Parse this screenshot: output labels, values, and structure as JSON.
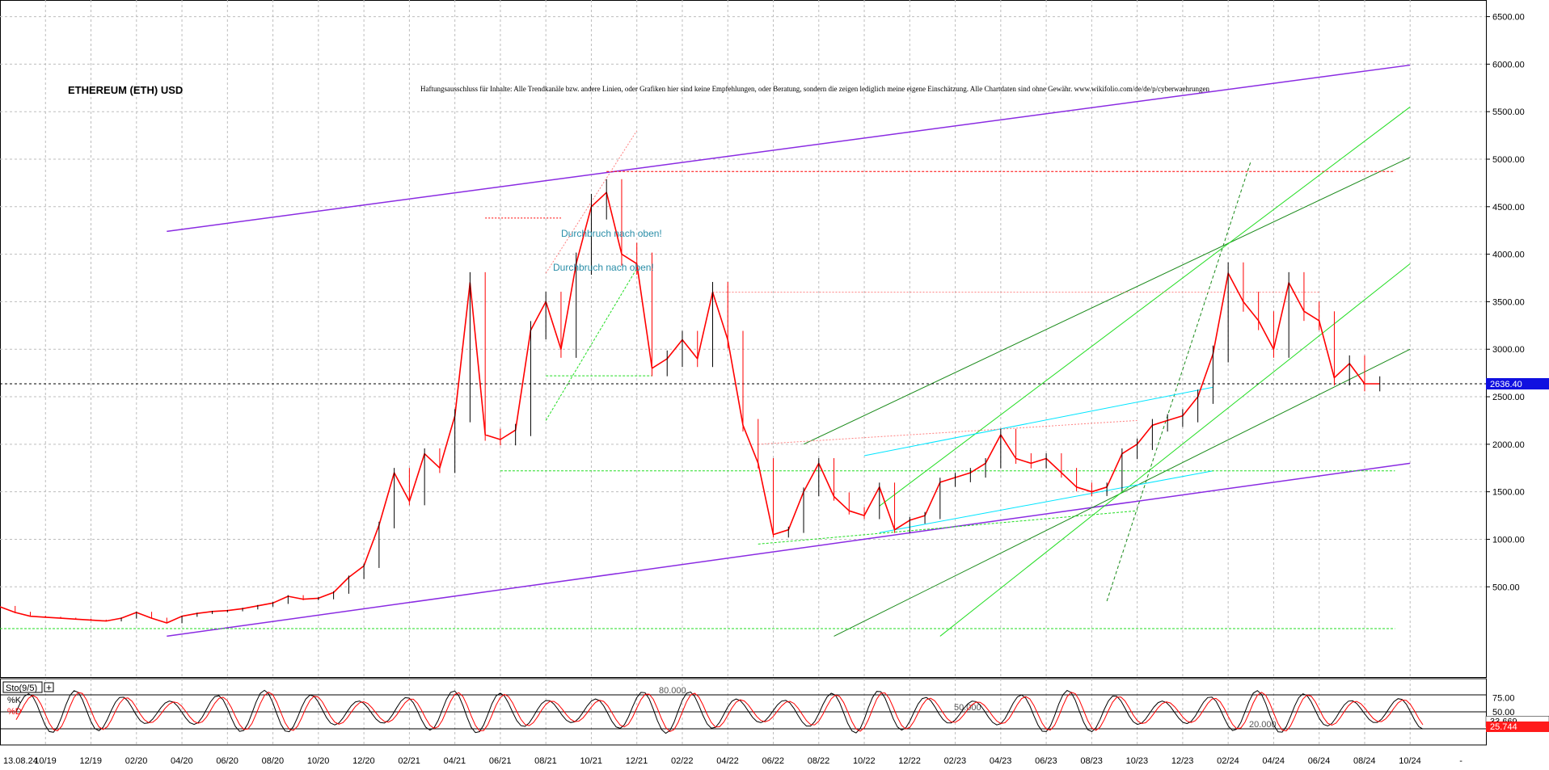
{
  "chart_data": {
    "type": "line",
    "title": "ETHEREUM (ETH) USD",
    "disclaimer": "Haftungsausschluss für Inhalte: Alle Trendkanäle bzw. andere Linien, oder Grafiken hier sind keine Empfehlungen, oder Beratung, sondern die zeigen lediglich meine eigene Einschätzung. Alle Chartdaten sind ohne Gewähr.  www.wikifolio.com/de/de/p/cyberwaehrungen",
    "y_ticks": [
      "6500.00",
      "6000.00",
      "5500.00",
      "5000.00",
      "4500.00",
      "4000.00",
      "3500.00",
      "3000.00",
      "2500.00",
      "2000.00",
      "1500.00",
      "1000.00",
      "500.00"
    ],
    "y_tick_values": [
      6500,
      6000,
      5500,
      5000,
      4500,
      4000,
      3500,
      3000,
      2500,
      2000,
      1500,
      1000,
      500
    ],
    "ylim": [
      -450,
      6675
    ],
    "x_ticks": [
      "13.08.24",
      "10/19",
      "12/19",
      "02/20",
      "04/20",
      "06/20",
      "08/20",
      "10/20",
      "12/20",
      "02/21",
      "04/21",
      "06/21",
      "08/21",
      "10/21",
      "12/21",
      "02/22",
      "04/22",
      "06/22",
      "08/22",
      "10/22",
      "12/22",
      "02/23",
      "04/23",
      "06/23",
      "08/23",
      "10/23",
      "12/23",
      "02/24",
      "04/24",
      "06/24",
      "08/24",
      "10/24",
      "-"
    ],
    "x_tick_index": [
      0,
      3,
      6,
      9,
      12,
      15,
      18,
      21,
      24,
      27,
      30,
      33,
      36,
      39,
      42,
      45,
      48,
      51,
      54,
      57,
      60,
      63,
      66,
      69,
      72,
      75,
      78,
      81,
      84,
      87,
      90,
      93,
      97
    ],
    "xlim": [
      0,
      98
    ],
    "series": [
      {
        "x": [
          0,
          1,
          2,
          3,
          4,
          5,
          6,
          7,
          8,
          9,
          10,
          11,
          12,
          13,
          14,
          15,
          16,
          17,
          18,
          19,
          20,
          21,
          22,
          23,
          24,
          25,
          26,
          27,
          28,
          29,
          30,
          31,
          32,
          33,
          34,
          35,
          36,
          37,
          38,
          39,
          40,
          41,
          42,
          43,
          44,
          45,
          46,
          47,
          48,
          49,
          50,
          51,
          52,
          53,
          54,
          55,
          56,
          57,
          58,
          59,
          60,
          61,
          62,
          63,
          64,
          65,
          66,
          67,
          68,
          69,
          70,
          71,
          72,
          73,
          74,
          75,
          76,
          77,
          78,
          79,
          80,
          81,
          82,
          83,
          84,
          85,
          86,
          87,
          88,
          89,
          90,
          91
        ],
        "values": [
          290,
          230,
          190,
          180,
          170,
          160,
          150,
          140,
          170,
          230,
          170,
          120,
          190,
          220,
          240,
          250,
          270,
          300,
          330,
          400,
          370,
          380,
          440,
          600,
          720,
          1150,
          1700,
          1400,
          1900,
          1750,
          2300,
          3700,
          2100,
          2050,
          2150,
          3200,
          3500,
          3000,
          3900,
          4500,
          4650,
          4000,
          3900,
          2800,
          2900,
          3100,
          2900,
          3600,
          3100,
          2200,
          1800,
          1050,
          1100,
          1500,
          1800,
          1450,
          1300,
          1250,
          1550,
          1100,
          1200,
          1250,
          1600,
          1650,
          1700,
          1800,
          2100,
          1850,
          1800,
          1850,
          1700,
          1550,
          1500,
          1550,
          1900,
          2000,
          2200,
          2250,
          2300,
          2500,
          2950,
          3800,
          3500,
          3300,
          3000,
          3700,
          3400,
          3300,
          2700,
          2850,
          2636,
          2636
        ]
      }
    ],
    "last_price": "2636.40",
    "annotations": [
      "Durchbruch nach oben!",
      "Durchbruch nach oben!"
    ],
    "oscillator": {
      "name": "Sto(9/5)",
      "k_label": "%K",
      "d_label": "%D",
      "level_labels": [
        "80.000",
        "50.000",
        "20.000"
      ],
      "axis_ticks": [
        "75.00",
        "50.00",
        "25.00"
      ],
      "axis_tick_values": [
        75,
        50,
        25
      ],
      "k_value": "33.669",
      "d_value": "25.744",
      "ylim": [
        0,
        100
      ]
    },
    "colors": {
      "price_up": "#000000",
      "price_down": "#ff0000",
      "channel": "#8a2be2",
      "trend_light": "#22dd22",
      "trend_dark": "#1a8a1a",
      "cyan": "#00e5ff",
      "last_price_bg": "#1010e0",
      "d_value_bg": "#ff1a1a"
    }
  }
}
